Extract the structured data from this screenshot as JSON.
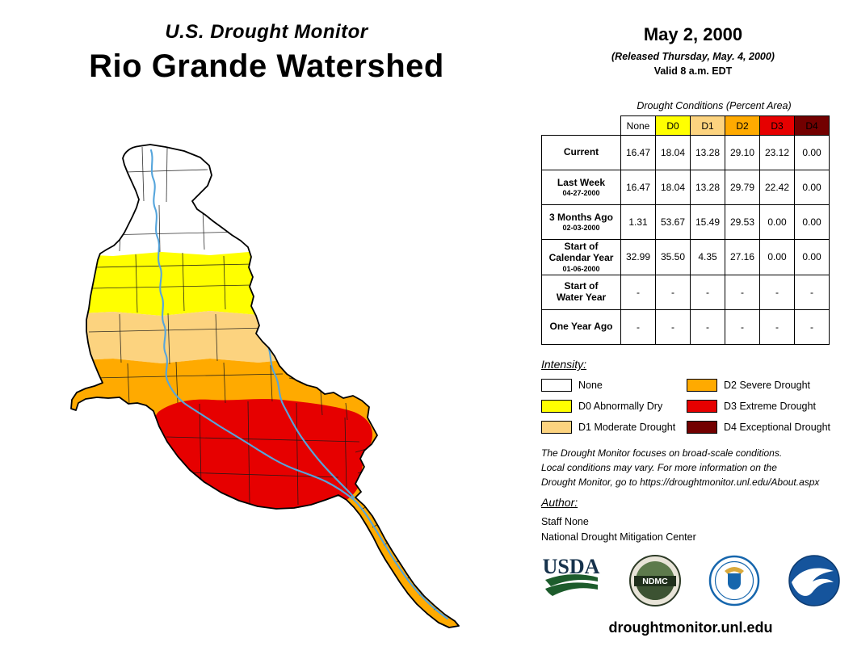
{
  "colors": {
    "none": "#FFFFFF",
    "d0": "#FFFF00",
    "d1": "#FCD37F",
    "d2": "#FFAA00",
    "d3": "#E60000",
    "d4": "#730000",
    "river": "#55A5DC"
  },
  "header": {
    "program": "U.S. Drought Monitor",
    "region": "Rio Grande Watershed"
  },
  "date_block": {
    "date": "May 2, 2000",
    "released": "(Released Thursday, May. 4, 2000)",
    "valid": "Valid 8 a.m. EDT"
  },
  "table": {
    "caption": "Drought Conditions (Percent Area)",
    "columns": [
      {
        "label": "None",
        "code": "none"
      },
      {
        "label": "D0",
        "code": "d0"
      },
      {
        "label": "D1",
        "code": "d1"
      },
      {
        "label": "D2",
        "code": "d2"
      },
      {
        "label": "D3",
        "code": "d3"
      },
      {
        "label": "D4",
        "code": "d4"
      }
    ],
    "rows": [
      {
        "label": "Current",
        "sublabel": "",
        "values": [
          "16.47",
          "18.04",
          "13.28",
          "29.10",
          "23.12",
          "0.00"
        ]
      },
      {
        "label": "Last Week",
        "sublabel": "04-27-2000",
        "values": [
          "16.47",
          "18.04",
          "13.28",
          "29.79",
          "22.42",
          "0.00"
        ]
      },
      {
        "label": "3 Months Ago",
        "sublabel": "02-03-2000",
        "values": [
          "1.31",
          "53.67",
          "15.49",
          "29.53",
          "0.00",
          "0.00"
        ]
      },
      {
        "label": "Start of\nCalendar Year",
        "sublabel": "01-06-2000",
        "values": [
          "32.99",
          "35.50",
          "4.35",
          "27.16",
          "0.00",
          "0.00"
        ]
      },
      {
        "label": "Start of\nWater Year",
        "sublabel": "",
        "values": [
          "-",
          "-",
          "-",
          "-",
          "-",
          "-"
        ]
      },
      {
        "label": "One Year Ago",
        "sublabel": "",
        "values": [
          "-",
          "-",
          "-",
          "-",
          "-",
          "-"
        ]
      }
    ]
  },
  "legend": {
    "title": "Intensity:",
    "items": [
      {
        "code": "none",
        "label": "None"
      },
      {
        "code": "d0",
        "label": "D0 Abnormally Dry"
      },
      {
        "code": "d1",
        "label": "D1 Moderate Drought"
      },
      {
        "code": "d2",
        "label": "D2 Severe Drought"
      },
      {
        "code": "d3",
        "label": "D3 Extreme Drought"
      },
      {
        "code": "d4",
        "label": "D4 Exceptional Drought"
      }
    ]
  },
  "disclaimer": "The Drought Monitor focuses on broad-scale conditions.\nLocal conditions may vary. For more information on the\nDrought Monitor, go to https://droughtmonitor.unl.edu/About.aspx",
  "author": {
    "heading": "Author:",
    "name": "Staff None",
    "organization": "National Drought Mitigation Center"
  },
  "logos": [
    {
      "name": "USDA",
      "text": "USDA"
    },
    {
      "name": "NDMC",
      "text": "NDMC"
    },
    {
      "name": "U.S. Department of Commerce",
      "text": ""
    },
    {
      "name": "NOAA",
      "text": ""
    }
  ],
  "footer": {
    "url": "droughtmonitor.unl.edu"
  }
}
